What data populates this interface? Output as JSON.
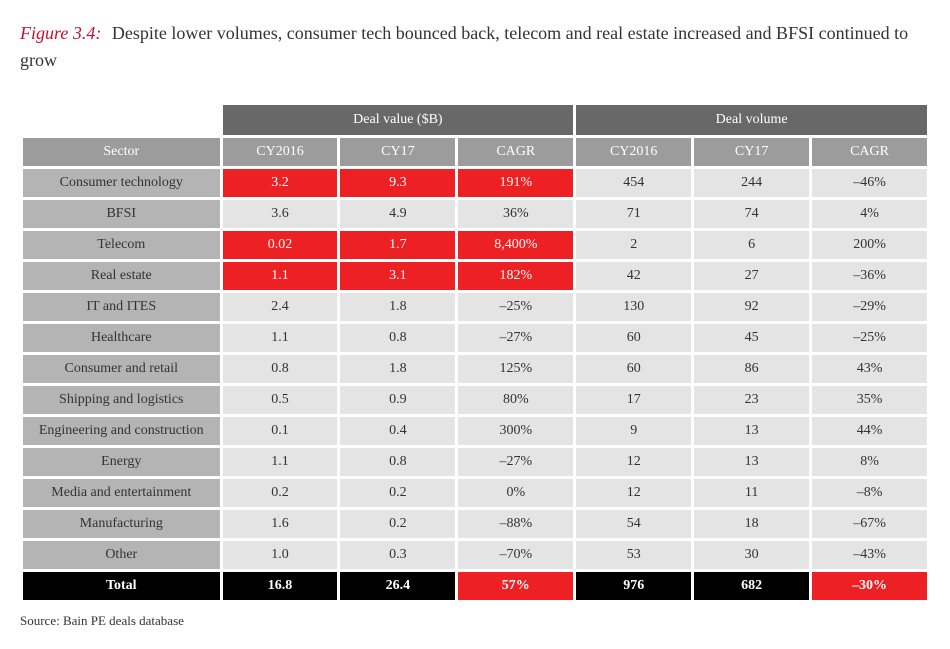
{
  "figure": {
    "label": "Figure 3.4:",
    "label_color": "#c8102e",
    "title": "Despite lower volumes, consumer tech bounced back, telecom and real estate increased and BFSI continued to grow"
  },
  "table": {
    "type": "table",
    "group_headers": [
      "Deal value ($B)",
      "Deal volume"
    ],
    "sector_header": "Sector",
    "sub_headers": [
      "CY2016",
      "CY17",
      "CAGR",
      "CY2016",
      "CY17",
      "CAGR"
    ],
    "rows": [
      {
        "sector": "Consumer technology",
        "cells": [
          "3.2",
          "9.3",
          "191%",
          "454",
          "244",
          "–46%"
        ],
        "highlight": [
          true,
          true,
          true,
          false,
          false,
          false
        ]
      },
      {
        "sector": "BFSI",
        "cells": [
          "3.6",
          "4.9",
          "36%",
          "71",
          "74",
          "4%"
        ],
        "highlight": [
          false,
          false,
          false,
          false,
          false,
          false
        ]
      },
      {
        "sector": "Telecom",
        "cells": [
          "0.02",
          "1.7",
          "8,400%",
          "2",
          "6",
          "200%"
        ],
        "highlight": [
          true,
          true,
          true,
          false,
          false,
          false
        ]
      },
      {
        "sector": "Real estate",
        "cells": [
          "1.1",
          "3.1",
          "182%",
          "42",
          "27",
          "–36%"
        ],
        "highlight": [
          true,
          true,
          true,
          false,
          false,
          false
        ]
      },
      {
        "sector": "IT and ITES",
        "cells": [
          "2.4",
          "1.8",
          "–25%",
          "130",
          "92",
          "–29%"
        ],
        "highlight": [
          false,
          false,
          false,
          false,
          false,
          false
        ]
      },
      {
        "sector": "Healthcare",
        "cells": [
          "1.1",
          "0.8",
          "–27%",
          "60",
          "45",
          "–25%"
        ],
        "highlight": [
          false,
          false,
          false,
          false,
          false,
          false
        ]
      },
      {
        "sector": "Consumer and retail",
        "cells": [
          "0.8",
          "1.8",
          "125%",
          "60",
          "86",
          "43%"
        ],
        "highlight": [
          false,
          false,
          false,
          false,
          false,
          false
        ]
      },
      {
        "sector": "Shipping and logistics",
        "cells": [
          "0.5",
          "0.9",
          "80%",
          "17",
          "23",
          "35%"
        ],
        "highlight": [
          false,
          false,
          false,
          false,
          false,
          false
        ]
      },
      {
        "sector": "Engineering and construction",
        "cells": [
          "0.1",
          "0.4",
          "300%",
          "9",
          "13",
          "44%"
        ],
        "highlight": [
          false,
          false,
          false,
          false,
          false,
          false
        ]
      },
      {
        "sector": "Energy",
        "cells": [
          "1.1",
          "0.8",
          "–27%",
          "12",
          "13",
          "8%"
        ],
        "highlight": [
          false,
          false,
          false,
          false,
          false,
          false
        ]
      },
      {
        "sector": "Media and entertainment",
        "cells": [
          "0.2",
          "0.2",
          "0%",
          "12",
          "11",
          "–8%"
        ],
        "highlight": [
          false,
          false,
          false,
          false,
          false,
          false
        ]
      },
      {
        "sector": "Manufacturing",
        "cells": [
          "1.6",
          "0.2",
          "–88%",
          "54",
          "18",
          "–67%"
        ],
        "highlight": [
          false,
          false,
          false,
          false,
          false,
          false
        ]
      },
      {
        "sector": "Other",
        "cells": [
          "1.0",
          "0.3",
          "–70%",
          "53",
          "30",
          "–43%"
        ],
        "highlight": [
          false,
          false,
          false,
          false,
          false,
          false
        ]
      }
    ],
    "total": {
      "label": "Total",
      "cells": [
        "16.8",
        "26.4",
        "57%",
        "976",
        "682",
        "–30%"
      ],
      "highlight": [
        false,
        false,
        true,
        false,
        false,
        true
      ]
    },
    "colors": {
      "group_header_bg": "#686868",
      "sub_header_bg": "#9c9c9c",
      "sector_cell_bg": "#b4b4b4",
      "data_cell_bg": "#e4e4e4",
      "highlight_bg": "#ed2024",
      "total_bg": "#000000",
      "border": "#ffffff",
      "text_light": "#ffffff",
      "text_dark": "#333333"
    }
  },
  "source": "Source: Bain PE deals database"
}
